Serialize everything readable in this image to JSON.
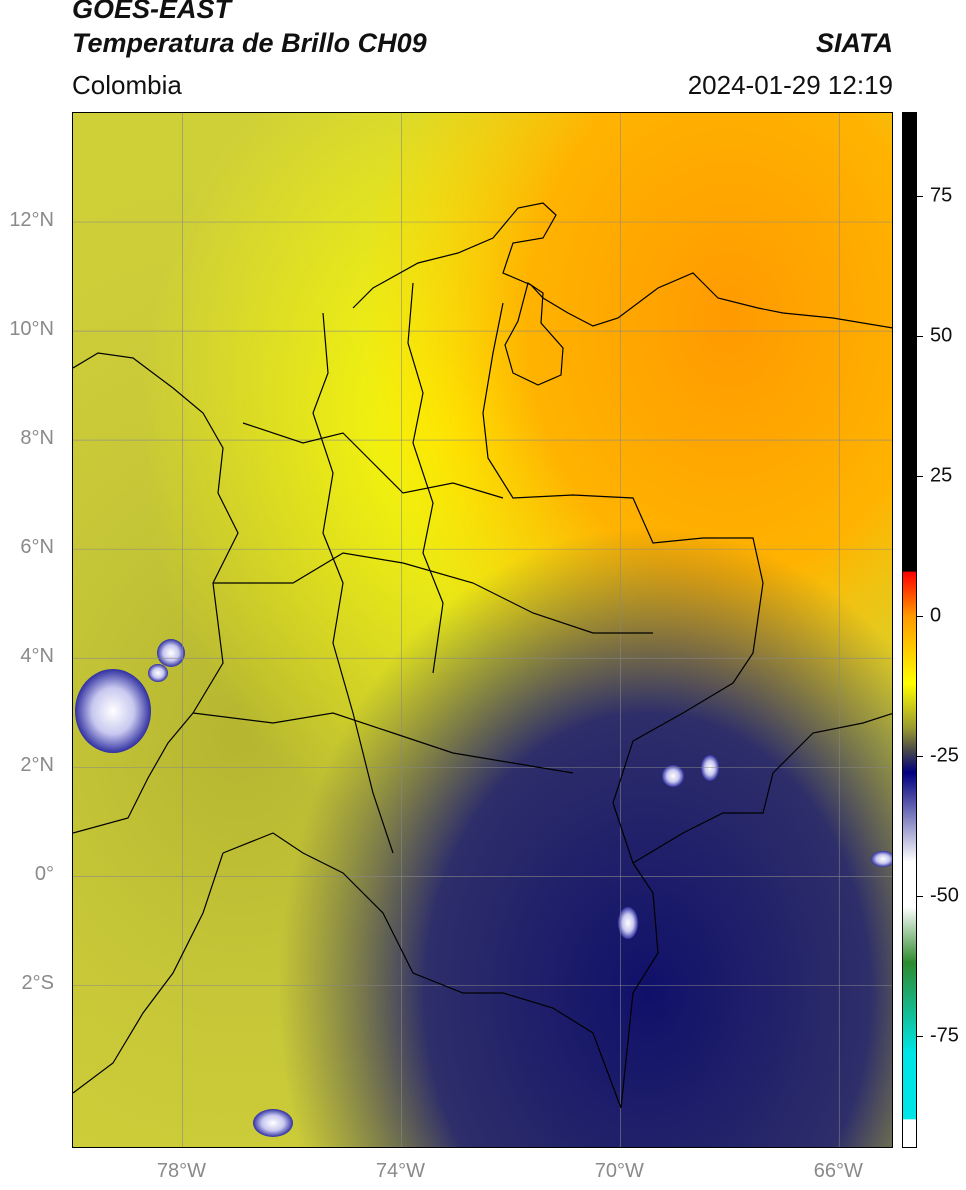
{
  "header": {
    "satellite": "GOES-EAST",
    "product": "Temperatura de Brillo CH09",
    "region": "Colombia",
    "organization": "SIATA",
    "datetime": "2024-01-29 12:19"
  },
  "map": {
    "lat_range": [
      -5,
      14
    ],
    "lon_range": [
      -80,
      -65
    ],
    "graticule": true,
    "lat_labels": [
      {
        "value": 12,
        "text": "12°N"
      },
      {
        "value": 10,
        "text": "10°N"
      },
      {
        "value": 8,
        "text": "8°N"
      },
      {
        "value": 6,
        "text": "6°N"
      },
      {
        "value": 4,
        "text": "4°N"
      },
      {
        "value": 2,
        "text": "2°N"
      },
      {
        "value": 0,
        "text": "0°"
      },
      {
        "value": -2,
        "text": "2°S"
      }
    ],
    "lon_labels": [
      {
        "value": -78,
        "text": "78°W"
      },
      {
        "value": -74,
        "text": "74°W"
      },
      {
        "value": -70,
        "text": "70°W"
      },
      {
        "value": -66,
        "text": "66°W"
      }
    ]
  },
  "colorbar": {
    "range": [
      -95,
      90
    ],
    "ticks": [
      {
        "value": 75,
        "text": "75"
      },
      {
        "value": 50,
        "text": "50"
      },
      {
        "value": 25,
        "text": "25"
      },
      {
        "value": 0,
        "text": "0"
      },
      {
        "value": -25,
        "text": "-25"
      },
      {
        "value": -50,
        "text": "-50"
      },
      {
        "value": -75,
        "text": "-75"
      }
    ],
    "colors": {
      "black": "#000000",
      "red": "#ff0000",
      "orange": "#ff9900",
      "yellow": "#ffff00",
      "olive": "#9a9a30",
      "gray": "#4a4a4a",
      "navy": "#000080",
      "white": "#ffffff",
      "green": "#2e8b2e",
      "cyan": "#00e5e5"
    }
  }
}
